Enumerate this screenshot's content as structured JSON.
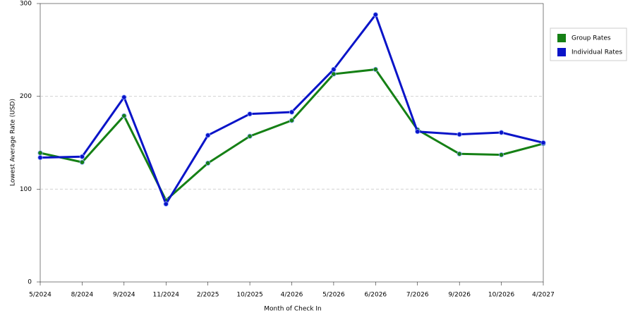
{
  "chart_data": {
    "type": "line",
    "x_label": "Month of Check In",
    "y_label": "Lowest Average Rate (USD)",
    "categories": [
      "5/2024",
      "8/2024",
      "9/2024",
      "11/2024",
      "2/2025",
      "10/2025",
      "4/2026",
      "5/2026",
      "6/2026",
      "7/2026",
      "9/2026",
      "10/2026",
      "4/2027"
    ],
    "series": [
      {
        "name": "Group Rates",
        "color": "#158015",
        "values": [
          139,
          129,
          179,
          88,
          128,
          157,
          174,
          224,
          229,
          164,
          138,
          137,
          149
        ]
      },
      {
        "name": "Individual Rates",
        "color": "#0a14c8",
        "values": [
          134,
          135,
          199,
          84,
          158,
          181,
          183,
          229,
          288,
          162,
          159,
          161,
          150
        ]
      }
    ],
    "ylim": [
      0,
      300
    ],
    "yticks": [
      0,
      100,
      200,
      300
    ],
    "grid": true,
    "legend": "top-right"
  }
}
